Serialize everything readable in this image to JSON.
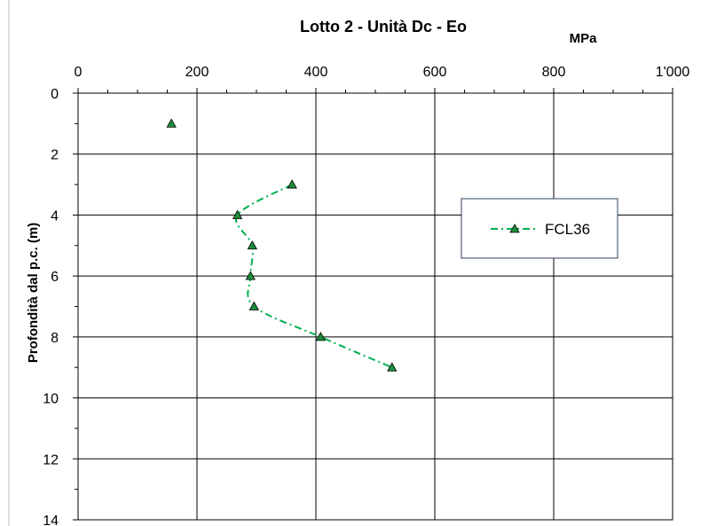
{
  "chart_data": {
    "type": "scatter",
    "title": "Lotto 2 - Unità Dc - Eo",
    "x_unit_label": "MPa",
    "xlabel": "",
    "ylabel": "Profondità dal p.c. (m)",
    "xlim": [
      0,
      1000
    ],
    "ylim": [
      0,
      14
    ],
    "y_inverted": true,
    "x_axis_position": "top",
    "grid": true,
    "x_ticks": [
      0,
      200,
      400,
      600,
      800,
      1000
    ],
    "x_tick_labels": [
      "0",
      "200",
      "400",
      "600",
      "800",
      "1'000"
    ],
    "y_ticks": [
      0,
      2,
      4,
      6,
      8,
      10,
      12,
      14
    ],
    "y_tick_labels": [
      "0",
      "2",
      "4",
      "6",
      "8",
      "10",
      "12",
      "14"
    ],
    "legend_placement": "right",
    "series": [
      {
        "name": "FCL36",
        "color": "#00b050",
        "marker": "triangle",
        "marker_fill": "#1e8c3a",
        "line_style": "dash-dot",
        "points": [
          {
            "x": 157,
            "y": 1.0,
            "connected": false
          },
          {
            "x": 360,
            "y": 3.0,
            "connected": true
          },
          {
            "x": 268,
            "y": 4.0,
            "connected": true
          },
          {
            "x": 293,
            "y": 5.0,
            "connected": true
          },
          {
            "x": 290,
            "y": 6.0,
            "connected": true
          },
          {
            "x": 296,
            "y": 7.0,
            "connected": true
          },
          {
            "x": 408,
            "y": 8.0,
            "connected": true
          },
          {
            "x": 528,
            "y": 9.0,
            "connected": true
          }
        ]
      }
    ]
  }
}
